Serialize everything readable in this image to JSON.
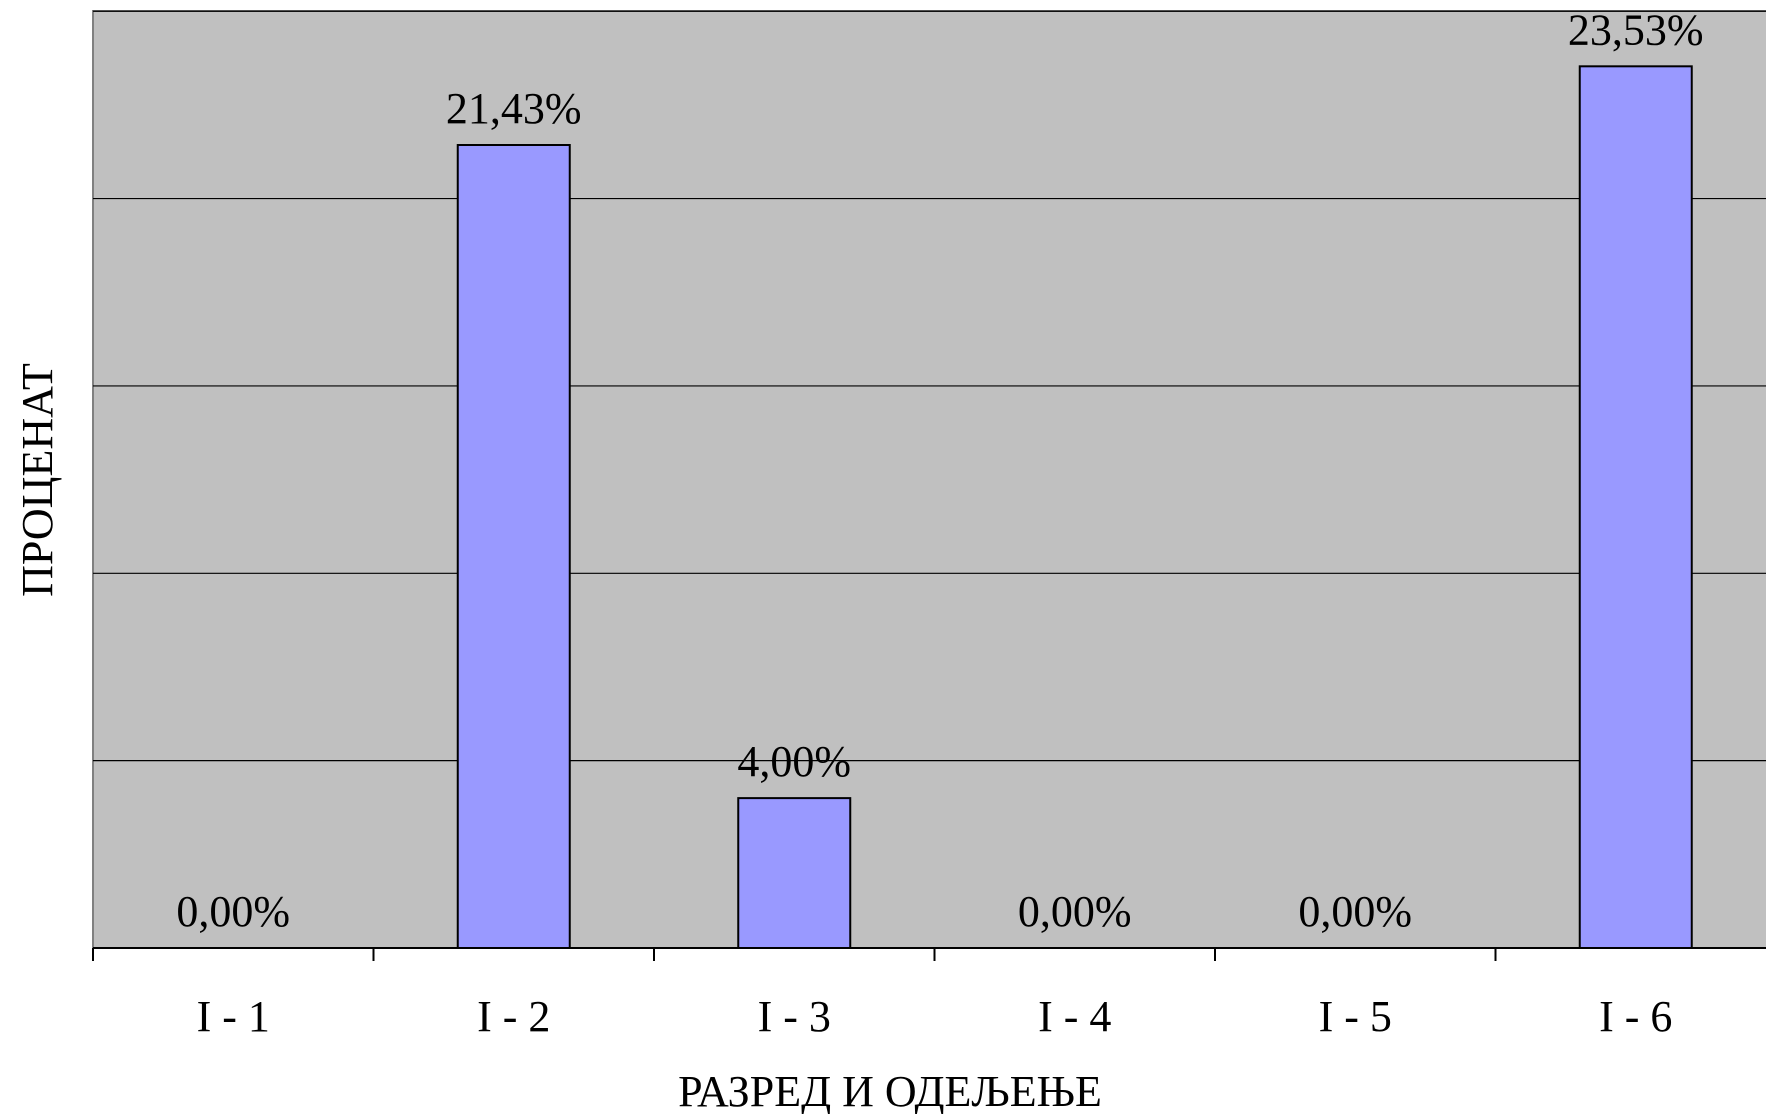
{
  "chart_data": {
    "type": "bar",
    "categories": [
      "I - 1",
      "I - 2",
      "I - 3",
      "I - 4",
      "I - 5",
      "I - 6"
    ],
    "values": [
      0.0,
      21.43,
      4.0,
      0.0,
      0.0,
      23.53
    ],
    "data_labels": [
      "0,00%",
      "21,43%",
      "4,00%",
      "0,00%",
      "0,00%",
      "23,53%"
    ],
    "xlabel": "РАЗРЕД И ОДЕЉЕЊЕ",
    "ylabel": "ПРОЦЕНАТ",
    "ylim": [
      0,
      25
    ],
    "gridline_step": 5,
    "grid": true,
    "legend": "none",
    "bar_color": "#9999ff",
    "plot_background": "#c0c0c0"
  }
}
